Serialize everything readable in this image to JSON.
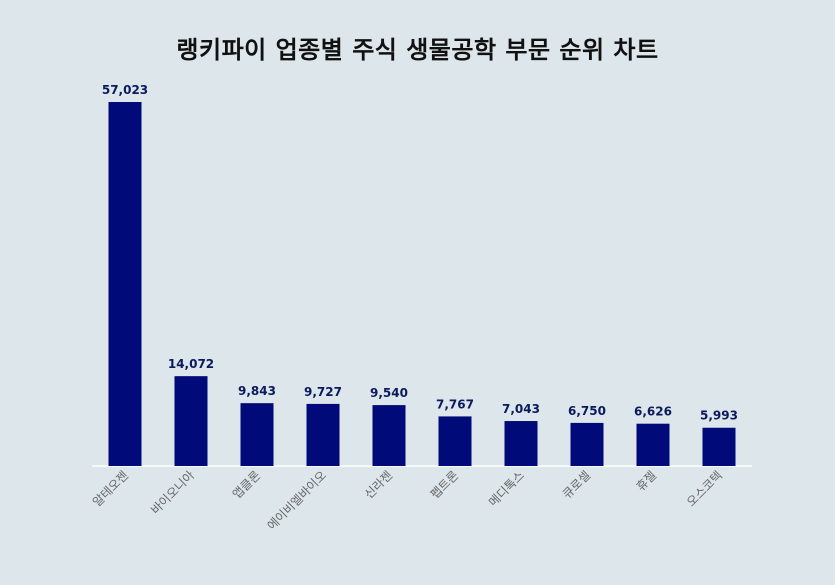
{
  "chart_data": {
    "type": "bar",
    "title": "랭키파이 업종별 주식 생물공학 부문 순위 차트",
    "categories": [
      "알테오젠",
      "바이오니아",
      "앱클론",
      "에이비엘바이오",
      "신라젠",
      "펩트론",
      "메디톡스",
      "큐로셀",
      "휴젤",
      "오스코텍"
    ],
    "values": [
      57023,
      14072,
      9843,
      9727,
      9540,
      7767,
      7043,
      6750,
      6626,
      5993
    ],
    "value_labels": [
      "57,023",
      "14,072",
      "9,843",
      "9,727",
      "9,540",
      "7,767",
      "7,043",
      "6,750",
      "6,626",
      "5,993"
    ],
    "xlabel": "",
    "ylabel": "",
    "ylim": [
      0,
      57023
    ],
    "grid": false,
    "colors": {
      "bar": "#000a78",
      "label": "#0a1a5c",
      "tick": "#666666",
      "axis": "#ffffff"
    }
  }
}
